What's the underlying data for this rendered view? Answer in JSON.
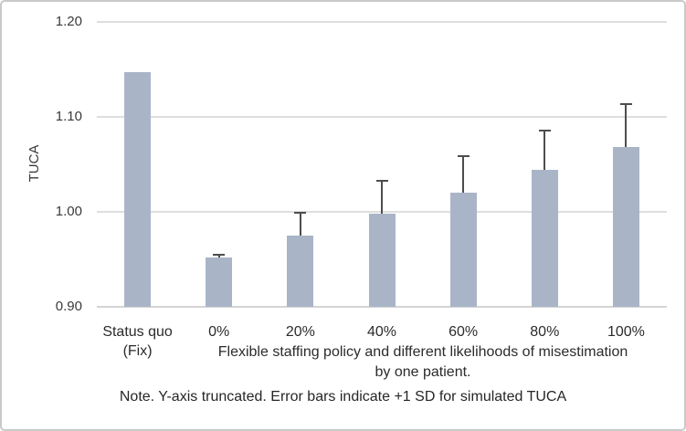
{
  "chart_data": {
    "type": "bar",
    "title": "",
    "ylabel": "TUCA",
    "xlabel_lines": [
      "Flexible staffing policy and different likelihoods of misestimation",
      "by one patient."
    ],
    "note": "Note. Y-axis truncated. Error bars indicate +1 SD for simulated TUCA",
    "ylim": [
      0.9,
      1.2
    ],
    "yticks": [
      0.9,
      1.0,
      1.1,
      1.2
    ],
    "ytick_labels": [
      "0.90",
      "1.00",
      "1.10",
      "1.20"
    ],
    "categories": [
      "Status quo\n(Fix)",
      "0%",
      "20%",
      "40%",
      "60%",
      "80%",
      "100%"
    ],
    "values": [
      1.147,
      0.952,
      0.975,
      0.998,
      1.02,
      1.044,
      1.068
    ],
    "error_plus_1sd": [
      null,
      0.003,
      0.024,
      0.035,
      0.039,
      0.042,
      0.045
    ],
    "grid": true,
    "legend": null,
    "colors": {
      "bar_fill": "#a9b5c7",
      "error_bar": "#4d4d4d",
      "gridline": "#dedede",
      "axis_line": "#d4d4d4",
      "text": "#2b2b2b",
      "figure_border": "#c9c9c9",
      "background": "#ffffff"
    }
  }
}
